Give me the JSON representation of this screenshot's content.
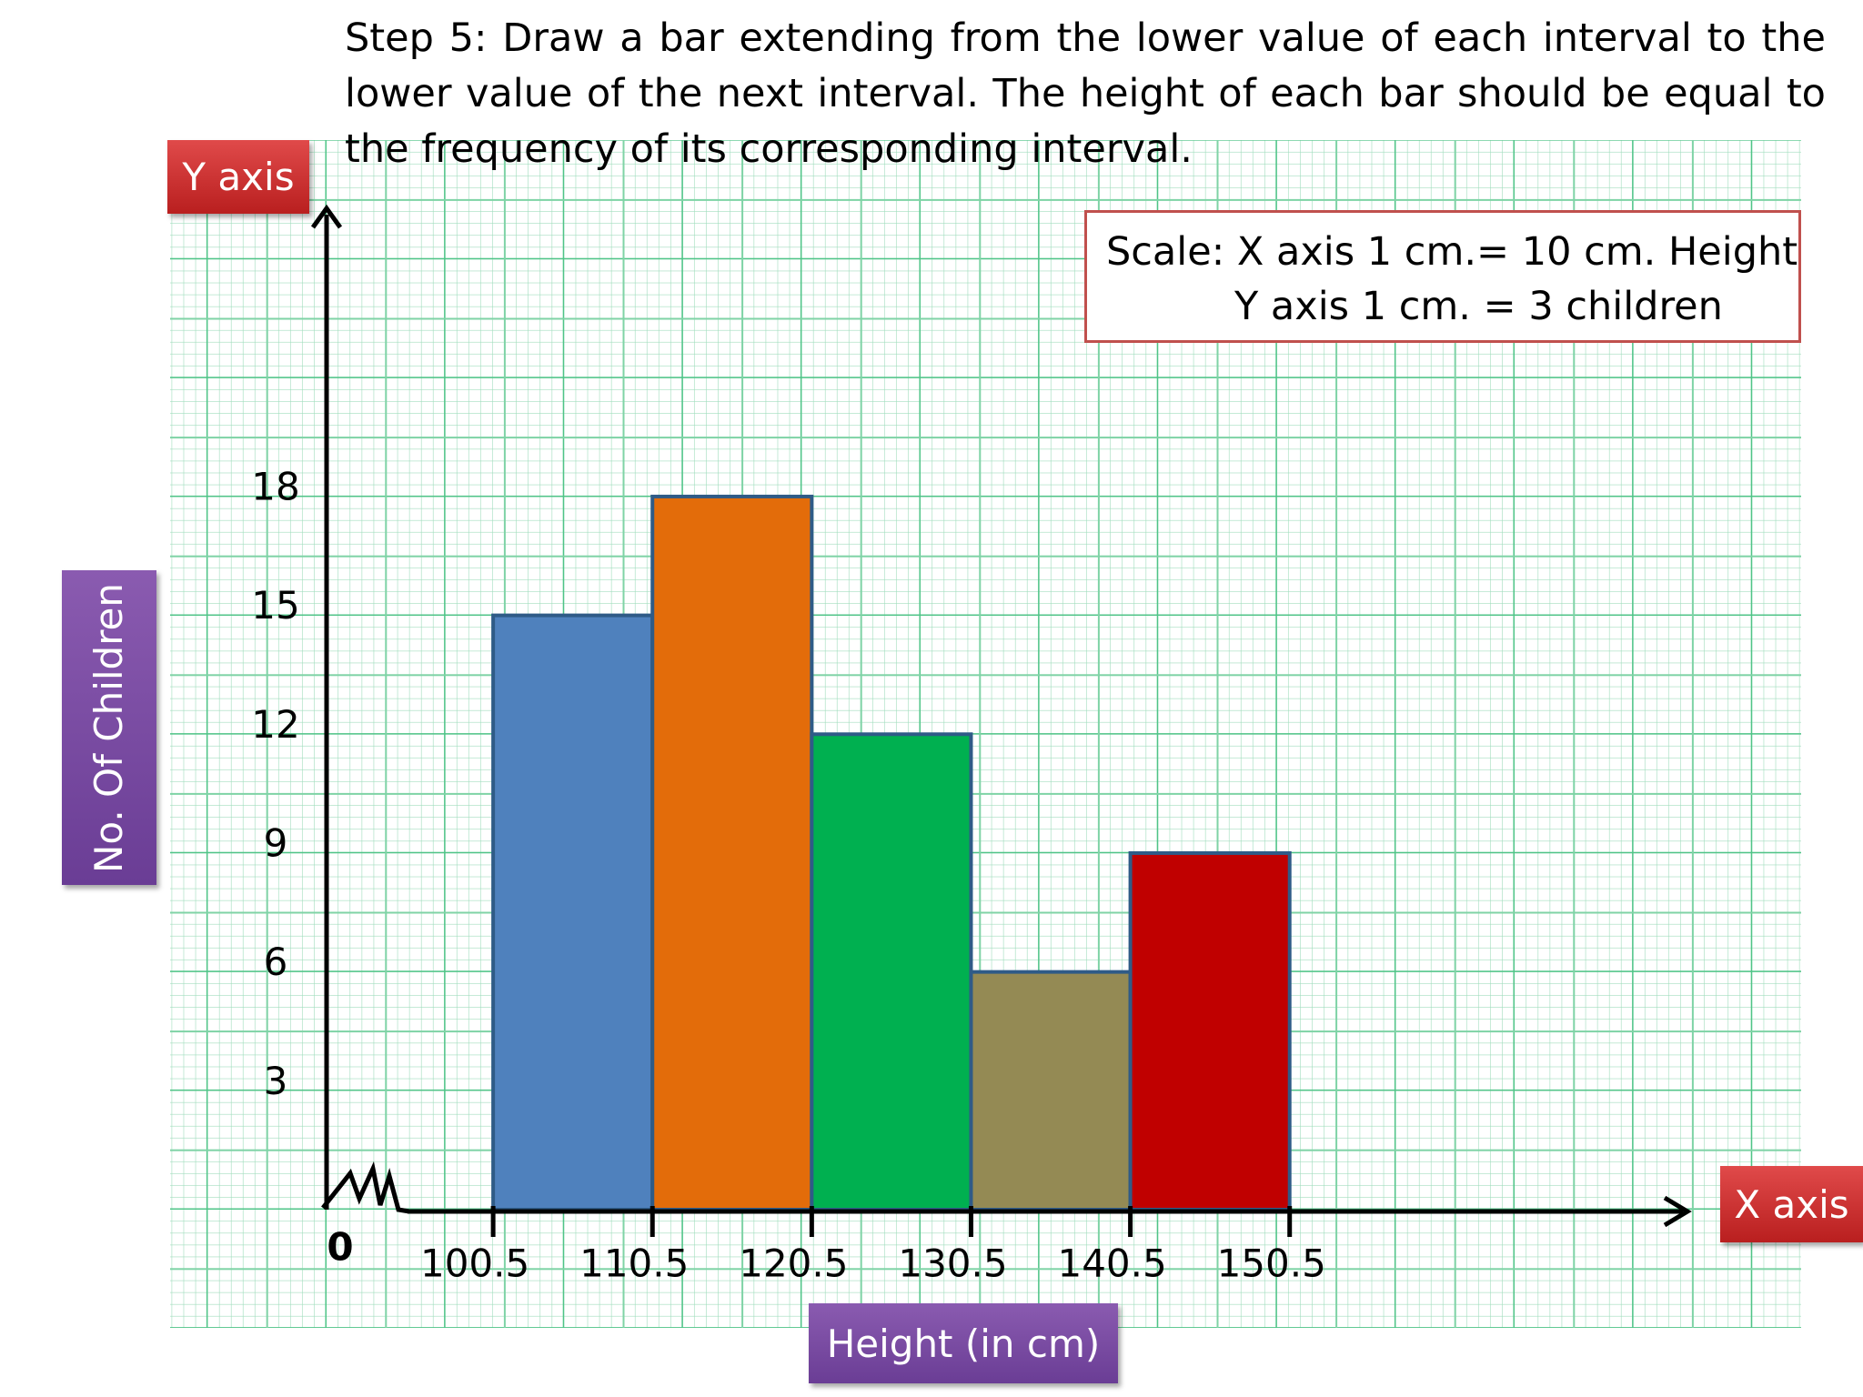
{
  "instruction": "Step 5: Draw a bar extending from the lower value of each interval to the lower value of the next interval. The height of each bar should be equal to the frequency of its corresponding interval.",
  "scale_note": [
    "Scale: X axis 1 cm.= 10 cm. Height",
    "Y axis 1 cm. = 3 children"
  ],
  "chart_data": {
    "type": "histogram",
    "y_axis_tag": "Y axis",
    "x_axis_tag": "X axis",
    "xlabel": "Height (in cm)",
    "ylabel": "No. Of Children",
    "origin_label": "0",
    "bins": [
      100.5,
      110.5,
      120.5,
      130.5,
      140.5,
      150.5
    ],
    "counts": [
      15,
      18,
      12,
      6,
      9
    ],
    "colors": [
      "#4f81bd",
      "#e36c0a",
      "#00b050",
      "#948a54",
      "#c00000"
    ],
    "xlim": [
      90.5,
      174.5
    ],
    "ylim": [
      0,
      25
    ],
    "yticks": [
      3,
      6,
      9,
      12,
      15,
      18
    ]
  }
}
